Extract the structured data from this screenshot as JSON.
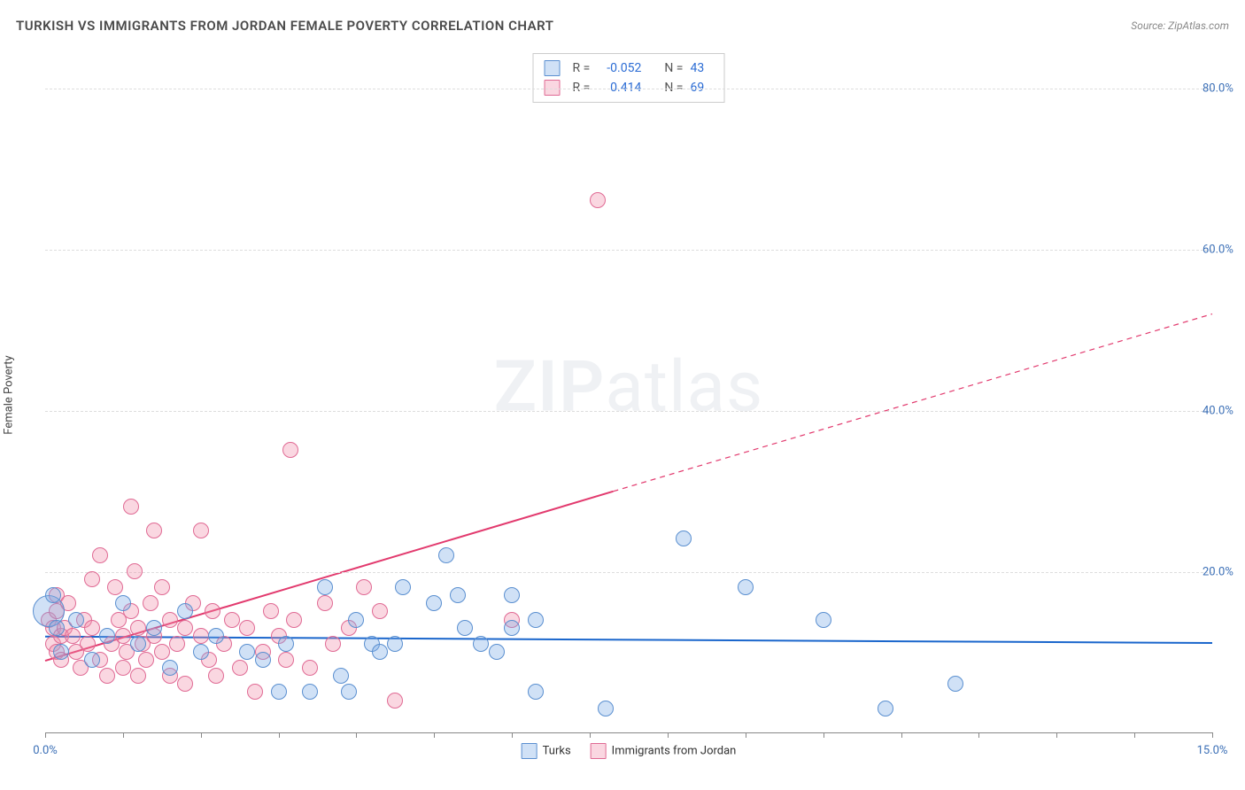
{
  "title": "TURKISH VS IMMIGRANTS FROM JORDAN FEMALE POVERTY CORRELATION CHART",
  "source": "Source: ZipAtlas.com",
  "watermark": "ZIPatlas",
  "ylabel": "Female Poverty",
  "chart": {
    "type": "scatter",
    "xlim": [
      0,
      15
    ],
    "ylim": [
      0,
      85
    ],
    "x_tick_step_pct": 1.0,
    "x_ticks_labeled": [
      {
        "x": 0.0,
        "label": "0.0%"
      },
      {
        "x": 15.0,
        "label": "15.0%"
      }
    ],
    "y_ticks": [
      {
        "y": 20,
        "label": "20.0%"
      },
      {
        "y": 40,
        "label": "40.0%"
      },
      {
        "y": 60,
        "label": "60.0%"
      },
      {
        "y": 80,
        "label": "80.0%"
      }
    ],
    "background_color": "#ffffff",
    "grid_color": "#dddddd",
    "grid_dash": "4,4",
    "axis_color": "#888888",
    "tick_label_color": "#3b6fb6",
    "tick_label_fontsize": 13
  },
  "series": {
    "turks": {
      "label": "Turks",
      "fill": "rgba(120,170,230,0.35)",
      "stroke": "#5a8fd0",
      "marker_radius": 9,
      "line_color": "#1a66cc",
      "line_width": 2,
      "trend": {
        "x1": 0,
        "y1": 12.0,
        "x2": 15,
        "y2": 11.2
      },
      "points": [
        {
          "x": 0.05,
          "y": 15,
          "r": 18
        },
        {
          "x": 0.1,
          "y": 17
        },
        {
          "x": 0.15,
          "y": 13
        },
        {
          "x": 0.2,
          "y": 10
        },
        {
          "x": 0.4,
          "y": 14
        },
        {
          "x": 0.6,
          "y": 9
        },
        {
          "x": 0.8,
          "y": 12
        },
        {
          "x": 1.0,
          "y": 16
        },
        {
          "x": 1.2,
          "y": 11
        },
        {
          "x": 1.4,
          "y": 13
        },
        {
          "x": 1.6,
          "y": 8
        },
        {
          "x": 1.8,
          "y": 15
        },
        {
          "x": 2.0,
          "y": 10
        },
        {
          "x": 2.2,
          "y": 12
        },
        {
          "x": 2.6,
          "y": 10
        },
        {
          "x": 2.8,
          "y": 9
        },
        {
          "x": 3.0,
          "y": 5
        },
        {
          "x": 3.1,
          "y": 11
        },
        {
          "x": 3.4,
          "y": 5
        },
        {
          "x": 3.6,
          "y": 18
        },
        {
          "x": 3.8,
          "y": 7
        },
        {
          "x": 3.9,
          "y": 5
        },
        {
          "x": 4.2,
          "y": 11
        },
        {
          "x": 4.3,
          "y": 10
        },
        {
          "x": 4.5,
          "y": 11
        },
        {
          "x": 4.6,
          "y": 18
        },
        {
          "x": 5.0,
          "y": 16
        },
        {
          "x": 5.15,
          "y": 22
        },
        {
          "x": 5.3,
          "y": 17
        },
        {
          "x": 5.4,
          "y": 13
        },
        {
          "x": 5.6,
          "y": 11
        },
        {
          "x": 6.0,
          "y": 13
        },
        {
          "x": 6.0,
          "y": 17
        },
        {
          "x": 6.3,
          "y": 5
        },
        {
          "x": 6.3,
          "y": 14
        },
        {
          "x": 7.2,
          "y": 3
        },
        {
          "x": 8.2,
          "y": 24
        },
        {
          "x": 9.0,
          "y": 18
        },
        {
          "x": 10.0,
          "y": 14
        },
        {
          "x": 10.8,
          "y": 3
        },
        {
          "x": 11.7,
          "y": 6
        },
        {
          "x": 5.8,
          "y": 10
        },
        {
          "x": 4.0,
          "y": 14
        }
      ]
    },
    "jordan": {
      "label": "Immigrants from Jordan",
      "fill": "rgba(240,140,170,0.35)",
      "stroke": "#e06a94",
      "marker_radius": 9,
      "line_color": "#e23a6e",
      "line_width": 2,
      "trend_solid": {
        "x1": 0,
        "y1": 9.0,
        "x2": 7.3,
        "y2": 30.0
      },
      "trend_dash": {
        "x1": 7.3,
        "y1": 30.0,
        "x2": 15,
        "y2": 52.0
      },
      "points": [
        {
          "x": 0.05,
          "y": 14
        },
        {
          "x": 0.1,
          "y": 11
        },
        {
          "x": 0.1,
          "y": 13
        },
        {
          "x": 0.15,
          "y": 15
        },
        {
          "x": 0.15,
          "y": 17
        },
        {
          "x": 0.15,
          "y": 10
        },
        {
          "x": 0.2,
          "y": 12
        },
        {
          "x": 0.2,
          "y": 9
        },
        {
          "x": 0.25,
          "y": 13
        },
        {
          "x": 0.3,
          "y": 16
        },
        {
          "x": 0.35,
          "y": 12
        },
        {
          "x": 0.4,
          "y": 10
        },
        {
          "x": 0.45,
          "y": 8
        },
        {
          "x": 0.5,
          "y": 14
        },
        {
          "x": 0.55,
          "y": 11
        },
        {
          "x": 0.6,
          "y": 13
        },
        {
          "x": 0.6,
          "y": 19
        },
        {
          "x": 0.7,
          "y": 9
        },
        {
          "x": 0.7,
          "y": 22
        },
        {
          "x": 0.8,
          "y": 7
        },
        {
          "x": 0.85,
          "y": 11
        },
        {
          "x": 0.9,
          "y": 18
        },
        {
          "x": 0.95,
          "y": 14
        },
        {
          "x": 1.0,
          "y": 12
        },
        {
          "x": 1.0,
          "y": 8
        },
        {
          "x": 1.05,
          "y": 10
        },
        {
          "x": 1.1,
          "y": 15
        },
        {
          "x": 1.1,
          "y": 28
        },
        {
          "x": 1.15,
          "y": 20
        },
        {
          "x": 1.2,
          "y": 13
        },
        {
          "x": 1.2,
          "y": 7
        },
        {
          "x": 1.25,
          "y": 11
        },
        {
          "x": 1.3,
          "y": 9
        },
        {
          "x": 1.35,
          "y": 16
        },
        {
          "x": 1.4,
          "y": 12
        },
        {
          "x": 1.4,
          "y": 25
        },
        {
          "x": 1.5,
          "y": 10
        },
        {
          "x": 1.5,
          "y": 18
        },
        {
          "x": 1.6,
          "y": 14
        },
        {
          "x": 1.6,
          "y": 7
        },
        {
          "x": 1.7,
          "y": 11
        },
        {
          "x": 1.8,
          "y": 13
        },
        {
          "x": 1.8,
          "y": 6
        },
        {
          "x": 1.9,
          "y": 16
        },
        {
          "x": 2.0,
          "y": 25
        },
        {
          "x": 2.0,
          "y": 12
        },
        {
          "x": 2.1,
          "y": 9
        },
        {
          "x": 2.15,
          "y": 15
        },
        {
          "x": 2.2,
          "y": 7
        },
        {
          "x": 2.3,
          "y": 11
        },
        {
          "x": 2.4,
          "y": 14
        },
        {
          "x": 2.5,
          "y": 8
        },
        {
          "x": 2.6,
          "y": 13
        },
        {
          "x": 2.7,
          "y": 5
        },
        {
          "x": 2.8,
          "y": 10
        },
        {
          "x": 2.9,
          "y": 15
        },
        {
          "x": 3.0,
          "y": 12
        },
        {
          "x": 3.1,
          "y": 9
        },
        {
          "x": 3.15,
          "y": 35
        },
        {
          "x": 3.2,
          "y": 14
        },
        {
          "x": 3.4,
          "y": 8
        },
        {
          "x": 3.6,
          "y": 16
        },
        {
          "x": 3.7,
          "y": 11
        },
        {
          "x": 3.9,
          "y": 13
        },
        {
          "x": 4.1,
          "y": 18
        },
        {
          "x": 4.3,
          "y": 15
        },
        {
          "x": 4.5,
          "y": 4
        },
        {
          "x": 6.0,
          "y": 14
        },
        {
          "x": 7.1,
          "y": 66
        }
      ]
    }
  },
  "legend_top": [
    {
      "swatch_fill": "rgba(120,170,230,0.35)",
      "swatch_stroke": "#5a8fd0",
      "r_label": "R =",
      "r_val": "-0.052",
      "n_label": "N =",
      "n_val": "43"
    },
    {
      "swatch_fill": "rgba(240,140,170,0.35)",
      "swatch_stroke": "#e06a94",
      "r_label": "R =",
      "r_val": "0.414",
      "n_label": "N =",
      "n_val": "69"
    }
  ],
  "legend_bottom": [
    {
      "swatch_fill": "rgba(120,170,230,0.35)",
      "swatch_stroke": "#5a8fd0",
      "label": "Turks"
    },
    {
      "swatch_fill": "rgba(240,140,170,0.35)",
      "swatch_stroke": "#e06a94",
      "label": "Immigrants from Jordan"
    }
  ]
}
